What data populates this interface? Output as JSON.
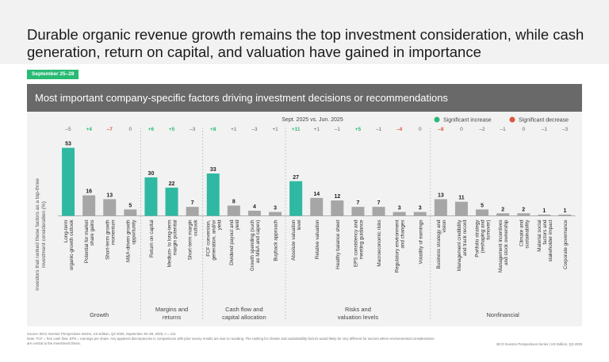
{
  "headline": "Durable organic revenue growth remains the top investment consideration, while cash generation, return on capital, and valuation have gained in importance",
  "date_badge": "September 25–28",
  "banner_title": "Most important company-specific factors driving investment decisions or recommendations",
  "footnote": {
    "source": "Source: BCG Investor Perspectives Series, US Edition, Q3 2025, September 25–28, 2025, n = 112",
    "note": "Note: FCF = free cash flow; EPS = earnings per share. Any apparent discrepancies in comparisons with prior survey results are due to rounding. The ranking for climate and sustainability factors would likely be very different for sectors where environmental considerations are central to the investment thesis.",
    "right": "BCG Investor Perspectives Series | US Edition, Q3 2025"
  },
  "colors": {
    "teal": "#2fb8a2",
    "gray": "#a6a6a6",
    "increase": "#29ba74",
    "decrease": "#e0533d",
    "neutral": "#666666"
  },
  "chart_data": {
    "type": "bar",
    "ylabel": "Investors that ranked these factors as a top-three investment consideration (%)",
    "comparison_label": "Sept. 2025 vs. Jun. 2025",
    "legend": [
      {
        "label": "Significant increase",
        "color": "#29ba74"
      },
      {
        "label": "Significant decrease",
        "color": "#e0533d"
      }
    ],
    "legend_position": "top-right",
    "ylim": [
      0,
      60
    ],
    "categories": [
      "Long-term organic-growth outlook",
      "Potential for market share gains",
      "Short-term growth momentum",
      "M&A-driven growth opportunity",
      "Return on capital",
      "Medium- to long-term margin potential",
      "Short-term margin outlook",
      "FCF conversion, generation, and/or yield",
      "Dividend payout and yield",
      "Growth spending (such as M&A and capex)",
      "Buyback approach",
      "Absolute valuation level",
      "Relative valuation",
      "Healthy balance sheet",
      "EPS consistency and meeting guidance",
      "Macroeconomic risks",
      "Regulatory environment and changes",
      "Volatility of earnings",
      "Business strategy and vision",
      "Management credibility and track record",
      "Portfolio strategy (reshaping and turnover)",
      "Management incentives and stock ownership",
      "Climate and sustainability",
      "Material social factors and stakeholder impact",
      "Corporate governance"
    ],
    "values": [
      53,
      16,
      13,
      5,
      30,
      22,
      7,
      33,
      8,
      4,
      3,
      27,
      14,
      12,
      7,
      7,
      3,
      3,
      13,
      11,
      5,
      2,
      2,
      1,
      1
    ],
    "highlighted": [
      true,
      false,
      false,
      false,
      true,
      true,
      false,
      true,
      false,
      false,
      false,
      true,
      false,
      false,
      false,
      false,
      false,
      false,
      false,
      false,
      false,
      false,
      false,
      false,
      false
    ],
    "changes": [
      "–5",
      "+4",
      "–7",
      "0",
      "+6",
      "+5",
      "–3",
      "+8",
      "+1",
      "–3",
      "+1",
      "+11",
      "+1",
      "–1",
      "+5",
      "–1",
      "–4",
      "0",
      "–8",
      "0",
      "–2",
      "–1",
      "0",
      "–1",
      "–3"
    ],
    "change_status": [
      "neutral",
      "increase",
      "decrease",
      "neutral",
      "increase",
      "increase",
      "neutral",
      "increase",
      "neutral",
      "neutral",
      "neutral",
      "increase",
      "neutral",
      "neutral",
      "increase",
      "neutral",
      "decrease",
      "neutral",
      "decrease",
      "neutral",
      "neutral",
      "neutral",
      "neutral",
      "neutral",
      "neutral"
    ],
    "groups": [
      {
        "name": "Growth",
        "count": 4
      },
      {
        "name": "Margins and returns",
        "count": 3
      },
      {
        "name": "Cash flow and capital allocation",
        "count": 4
      },
      {
        "name": "Risks and valuation levels",
        "count": 7
      },
      {
        "name": "Nonfinancial",
        "count": 7
      }
    ]
  }
}
